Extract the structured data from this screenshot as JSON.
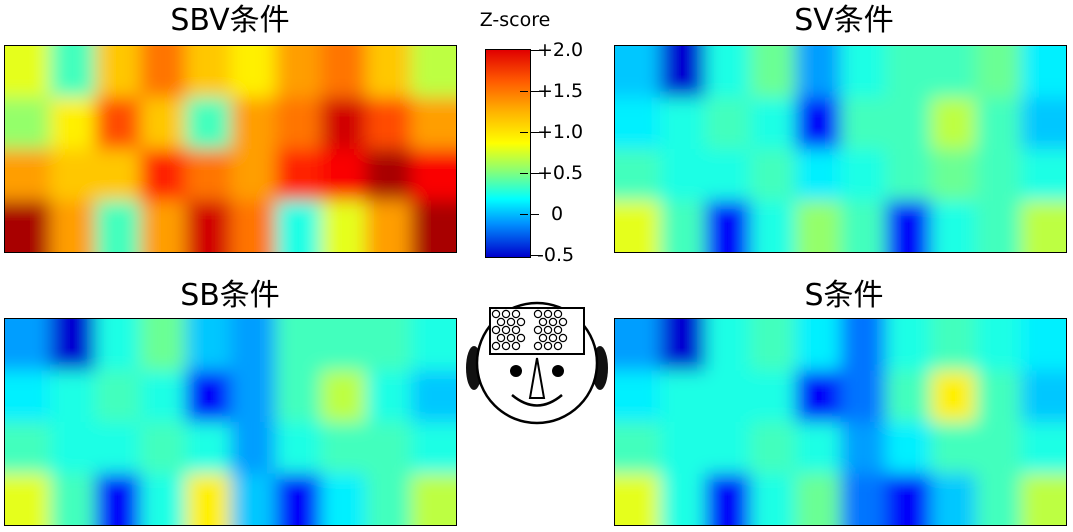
{
  "titles": [
    "SBV条件",
    "SV条件",
    "SB条件",
    "S条件"
  ],
  "colorbar": {
    "title": "Z-score",
    "ticks": [
      "+2.0",
      "+1.5",
      "+1.0",
      "+0.5",
      "0",
      "-0.5"
    ],
    "tick_values": [
      2.0,
      1.5,
      1.0,
      0.5,
      0.0,
      -0.5
    ]
  },
  "chart_data": {
    "type": "heatmap",
    "colormap": "jet",
    "vmin": -0.5,
    "vmax": 2.0,
    "colorbar_label": "Z-score",
    "grid": {
      "rows": 4,
      "cols": 10
    },
    "panels": [
      {
        "title": "SBV条件",
        "z": [
          [
            1.0,
            0.6,
            1.2,
            1.4,
            1.2,
            1.1,
            1.3,
            1.4,
            1.2,
            0.9
          ],
          [
            0.8,
            1.1,
            1.5,
            1.2,
            0.6,
            1.3,
            1.4,
            1.8,
            1.5,
            1.3
          ],
          [
            1.3,
            1.2,
            1.2,
            1.6,
            1.4,
            1.3,
            1.6,
            1.7,
            1.9,
            1.7
          ],
          [
            1.9,
            1.3,
            0.6,
            1.3,
            1.8,
            1.4,
            0.5,
            1.0,
            1.3,
            1.9
          ]
        ]
      },
      {
        "title": "SV条件",
        "z": [
          [
            0.3,
            -0.3,
            0.5,
            0.7,
            0.2,
            0.5,
            0.6,
            0.6,
            0.7,
            0.4
          ],
          [
            0.4,
            0.5,
            0.6,
            0.5,
            -0.2,
            0.6,
            0.6,
            0.9,
            0.6,
            0.3
          ],
          [
            0.6,
            0.5,
            0.5,
            0.6,
            0.4,
            0.5,
            0.6,
            0.7,
            0.6,
            0.5
          ],
          [
            1.0,
            0.6,
            -0.2,
            0.5,
            0.8,
            0.6,
            -0.2,
            0.5,
            0.6,
            0.9
          ]
        ]
      },
      {
        "title": "SB条件",
        "z": [
          [
            0.2,
            -0.3,
            0.5,
            0.7,
            0.3,
            0.2,
            0.6,
            0.6,
            0.6,
            0.5
          ],
          [
            0.4,
            0.5,
            0.6,
            0.5,
            -0.2,
            0.2,
            0.6,
            0.9,
            0.5,
            0.3
          ],
          [
            0.6,
            0.5,
            0.5,
            0.6,
            0.5,
            0.2,
            0.5,
            0.6,
            0.6,
            0.5
          ],
          [
            1.0,
            0.6,
            -0.2,
            0.5,
            1.1,
            0.3,
            -0.2,
            0.4,
            0.6,
            0.9
          ]
        ]
      },
      {
        "title": "S条件",
        "z": [
          [
            0.2,
            -0.3,
            0.5,
            0.6,
            0.4,
            0.1,
            0.5,
            0.6,
            0.5,
            0.4
          ],
          [
            0.4,
            0.5,
            0.5,
            0.5,
            -0.2,
            0.1,
            0.6,
            1.1,
            0.6,
            0.3
          ],
          [
            0.6,
            0.5,
            0.5,
            0.6,
            0.5,
            0.2,
            0.4,
            0.6,
            0.6,
            0.5
          ],
          [
            1.0,
            0.5,
            -0.2,
            0.5,
            0.7,
            0.1,
            -0.2,
            0.3,
            0.6,
            0.9
          ]
        ]
      }
    ]
  }
}
